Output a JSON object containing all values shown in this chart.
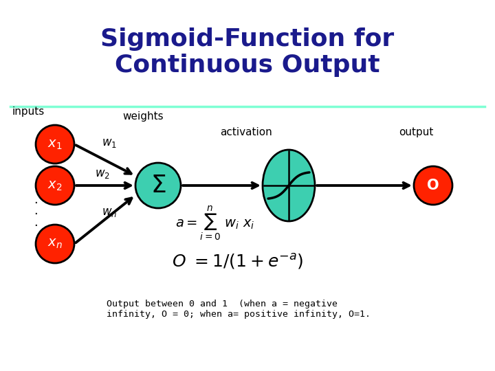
{
  "title_line1": "Sigmoid-Function for",
  "title_line2": "Continuous Output",
  "title_color": "#1a1a8c",
  "title_fontsize": 26,
  "bg_color": "#ffffff",
  "separator_color": "#7fffd4",
  "node_color_red": "#ff2200",
  "node_color_green": "#3dcfb0",
  "footer_text": "Output between 0 and 1  (when a = negative\ninfinity, O = 0; when a= positive infinity, O=1."
}
